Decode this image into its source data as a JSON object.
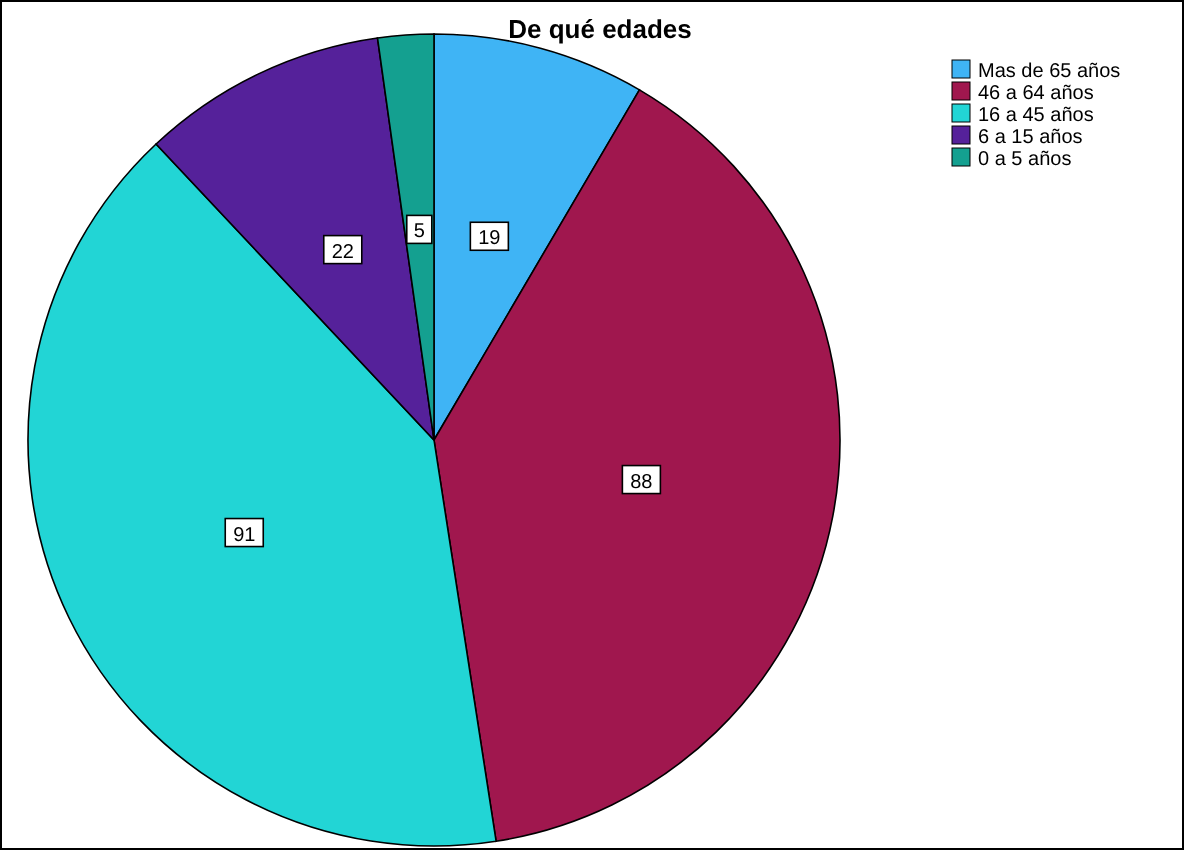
{
  "chart_data": {
    "type": "pie",
    "title": "De qué edades",
    "categories": [
      "Mas de 65 años",
      "46 a 64 años",
      "16 a 45 años",
      "6 a 15 años",
      "0 a 5 años"
    ],
    "values": [
      19,
      88,
      91,
      22,
      5
    ],
    "colors": [
      "#3fb4f5",
      "#a0174e",
      "#22d5d5",
      "#55219a",
      "#14a090"
    ],
    "data_labels": true,
    "legend": "top right"
  }
}
